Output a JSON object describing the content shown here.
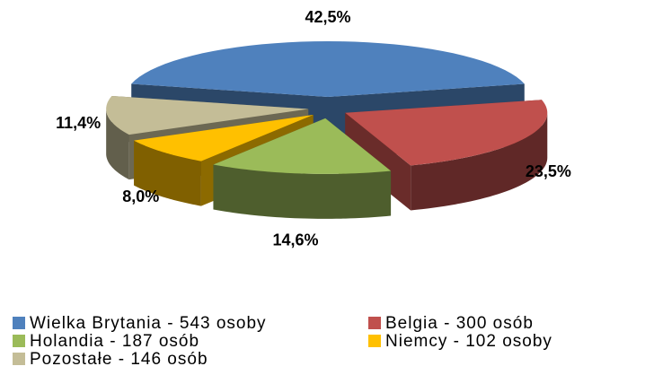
{
  "chart_data": {
    "type": "pie3d",
    "categories": [
      "Wielka Brytania - 543 osoby",
      "Belgia - 300 osób",
      "Holandia - 187 osób",
      "Niemcy - 102 osoby",
      "Pozostałe - 146 osób"
    ],
    "values": [
      42.5,
      23.5,
      14.6,
      8.0,
      11.4
    ],
    "value_labels": [
      "42,5%",
      "23,5%",
      "14,6%",
      "8,0%",
      "11,4%"
    ],
    "colors": [
      "#4f81bd",
      "#c0504d",
      "#9bbb59",
      "#ffc000",
      "#c4bd97"
    ],
    "legend": "bottom"
  }
}
